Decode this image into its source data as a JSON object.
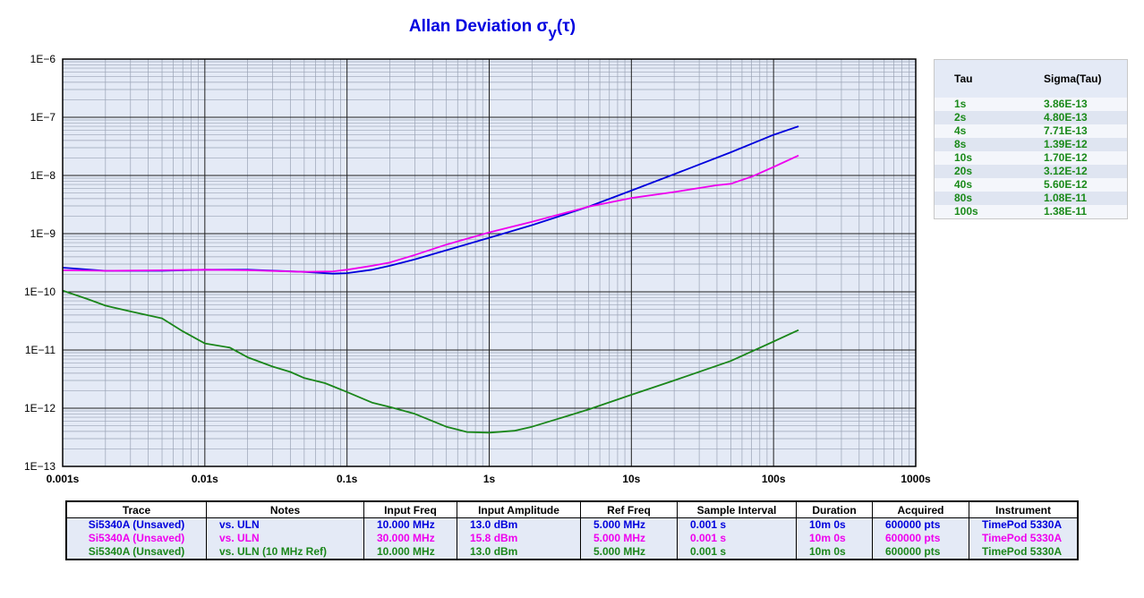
{
  "chart_data": {
    "type": "line",
    "title": "Allan Deviation",
    "title_symbol": "σ",
    "title_sub": "y",
    "title_arg": "(τ)",
    "x_scale": "log",
    "y_scale": "log",
    "xlim": [
      0.001,
      1000
    ],
    "ylim": [
      1e-13,
      1e-06
    ],
    "x_ticks": [
      {
        "value": 0.001,
        "label": "0.001s"
      },
      {
        "value": 0.01,
        "label": "0.01s"
      },
      {
        "value": 0.1,
        "label": "0.1s"
      },
      {
        "value": 1,
        "label": "1s"
      },
      {
        "value": 10,
        "label": "10s"
      },
      {
        "value": 100,
        "label": "100s"
      },
      {
        "value": 1000,
        "label": "1000s"
      }
    ],
    "y_ticks": [
      {
        "value": 1e-06,
        "label": "1E−6"
      },
      {
        "value": 1e-07,
        "label": "1E−7"
      },
      {
        "value": 1e-08,
        "label": "1E−8"
      },
      {
        "value": 1e-09,
        "label": "1E−9"
      },
      {
        "value": 1e-10,
        "label": "1E−10"
      },
      {
        "value": 1e-11,
        "label": "1E−11"
      },
      {
        "value": 1e-12,
        "label": "1E−12"
      },
      {
        "value": 1e-13,
        "label": "1E−13"
      }
    ],
    "grid": true,
    "legend": "none",
    "series": [
      {
        "color": "#0000dd",
        "x": [
          0.001,
          0.002,
          0.005,
          0.01,
          0.02,
          0.05,
          0.08,
          0.1,
          0.15,
          0.2,
          0.3,
          0.5,
          1,
          2,
          5,
          10,
          20,
          50,
          100,
          150
        ],
        "y": [
          2.6e-10,
          2.3e-10,
          2.3e-10,
          2.4e-10,
          2.4e-10,
          2.2e-10,
          2.05e-10,
          2.1e-10,
          2.4e-10,
          2.8e-10,
          3.6e-10,
          5.2e-10,
          8.5e-10,
          1.4e-09,
          2.9e-09,
          5.5e-09,
          1.05e-08,
          2.5e-08,
          5e-08,
          7e-08
        ]
      },
      {
        "color": "#ee00ee",
        "x": [
          0.001,
          0.002,
          0.005,
          0.01,
          0.02,
          0.05,
          0.08,
          0.1,
          0.15,
          0.2,
          0.3,
          0.5,
          1,
          2,
          5,
          10,
          20,
          40,
          50,
          70,
          100,
          150
        ],
        "y": [
          2.35e-10,
          2.3e-10,
          2.35e-10,
          2.4e-10,
          2.35e-10,
          2.2e-10,
          2.25e-10,
          2.4e-10,
          2.8e-10,
          3.2e-10,
          4.3e-10,
          6.5e-10,
          1.05e-09,
          1.6e-09,
          2.9e-09,
          4.1e-09,
          5.2e-09,
          6.8e-09,
          7.2e-09,
          9.5e-09,
          1.4e-08,
          2.2e-08
        ]
      },
      {
        "color": "#1a861a",
        "x": [
          0.001,
          0.0015,
          0.002,
          0.003,
          0.005,
          0.007,
          0.01,
          0.015,
          0.02,
          0.03,
          0.04,
          0.05,
          0.07,
          0.1,
          0.15,
          0.2,
          0.3,
          0.5,
          0.7,
          1,
          1.5,
          2,
          3,
          5,
          10,
          20,
          50,
          100,
          150
        ],
        "y": [
          1.05e-10,
          7.5e-11,
          5.8e-11,
          4.6e-11,
          3.5e-11,
          2.1e-11,
          1.3e-11,
          1.1e-11,
          7.5e-12,
          5.2e-12,
          4.2e-12,
          3.3e-12,
          2.7e-12,
          1.9e-12,
          1.25e-12,
          1.05e-12,
          8e-13,
          4.8e-13,
          3.9e-13,
          3.8e-13,
          4.1e-13,
          4.8e-13,
          6.5e-13,
          9.5e-13,
          1.7e-12,
          3e-12,
          6.5e-12,
          1.4e-11,
          2.2e-11
        ]
      }
    ]
  },
  "sigma_table": {
    "header": {
      "tau": "Tau",
      "sigma": "Sigma(Tau)"
    },
    "rows": [
      {
        "tau": "1s",
        "sigma": "3.86E-13"
      },
      {
        "tau": "2s",
        "sigma": "4.80E-13"
      },
      {
        "tau": "4s",
        "sigma": "7.71E-13"
      },
      {
        "tau": "8s",
        "sigma": "1.39E-12"
      },
      {
        "tau": "10s",
        "sigma": "1.70E-12"
      },
      {
        "tau": "20s",
        "sigma": "3.12E-12"
      },
      {
        "tau": "40s",
        "sigma": "5.60E-12"
      },
      {
        "tau": "80s",
        "sigma": "1.08E-11"
      },
      {
        "tau": "100s",
        "sigma": "1.38E-11"
      }
    ]
  },
  "trace_table": {
    "headers": {
      "trace": "Trace",
      "notes": "Notes",
      "input_freq": "Input Freq",
      "input_amp": "Input Amplitude",
      "ref_freq": "Ref Freq",
      "sample_interval": "Sample Interval",
      "duration": "Duration",
      "acquired": "Acquired",
      "instrument": "Instrument"
    },
    "rows": [
      {
        "color": "#0000dd",
        "trace": "Si5340A (Unsaved)",
        "notes": "vs. ULN",
        "input_freq": "10.000 MHz",
        "input_amp": "13.0 dBm",
        "ref_freq": "5.000 MHz",
        "sample_interval": "0.001 s",
        "duration": "10m 0s",
        "acquired": "600000 pts",
        "instrument": "TimePod 5330A"
      },
      {
        "color": "#ee00ee",
        "trace": "Si5340A (Unsaved)",
        "notes": "vs. ULN",
        "input_freq": "30.000 MHz",
        "input_amp": "15.8 dBm",
        "ref_freq": "5.000 MHz",
        "sample_interval": "0.001 s",
        "duration": "10m 0s",
        "acquired": "600000 pts",
        "instrument": "TimePod 5330A"
      },
      {
        "color": "#1a861a",
        "trace": "Si5340A (Unsaved)",
        "notes": "vs. ULN (10 MHz Ref)",
        "input_freq": "10.000 MHz",
        "input_amp": "13.0 dBm",
        "ref_freq": "5.000 MHz",
        "sample_interval": "0.001 s",
        "duration": "10m 0s",
        "acquired": "600000 pts",
        "instrument": "TimePod 5330A"
      }
    ]
  }
}
